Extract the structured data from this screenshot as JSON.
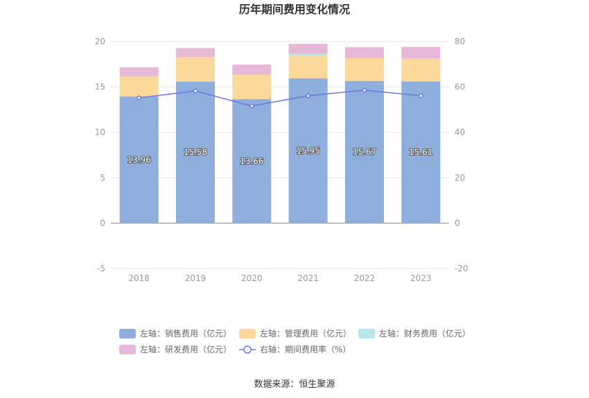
{
  "chart_data": {
    "type": "bar",
    "stacked": true,
    "title": "历年期间费用变化情况",
    "categories": [
      "2018",
      "2019",
      "2020",
      "2021",
      "2022",
      "2023"
    ],
    "left_axis": {
      "ylim": [
        -5,
        20
      ],
      "ticks": [
        -5,
        0,
        5,
        10,
        15,
        20
      ]
    },
    "right_axis": {
      "ylim": [
        -20,
        80
      ],
      "ticks": [
        -20,
        0,
        20,
        40,
        60,
        80
      ]
    },
    "series": [
      {
        "name": "左轴：销售费用（亿元）",
        "axis": "left",
        "type": "bar",
        "color": "#8eaedb",
        "values": [
          13.96,
          15.58,
          13.66,
          15.95,
          15.67,
          15.61
        ],
        "show_labels": true
      },
      {
        "name": "左轴：管理费用（亿元）",
        "axis": "left",
        "type": "bar",
        "color": "#fdd89b",
        "values": [
          2.2,
          2.7,
          2.7,
          2.5,
          2.5,
          2.5
        ]
      },
      {
        "name": "左轴：财务费用（亿元）",
        "axis": "left",
        "type": "bar",
        "color": "#b9e6e8",
        "values": [
          0.0,
          0.0,
          0.0,
          0.2,
          0.0,
          0.0
        ]
      },
      {
        "name": "左轴：研发费用（亿元）",
        "axis": "left",
        "type": "bar",
        "color": "#e8b8d9",
        "values": [
          1.0,
          1.0,
          1.1,
          1.1,
          1.2,
          1.3
        ]
      },
      {
        "name": "右轴：期间费用率（%）",
        "axis": "right",
        "type": "line",
        "color": "#6f74e6",
        "values": [
          55.2,
          58.2,
          51.6,
          56.1,
          58.6,
          56.1
        ]
      }
    ],
    "legend_position": "bottom",
    "grid": true
  },
  "source": "数据来源：恒生聚源"
}
